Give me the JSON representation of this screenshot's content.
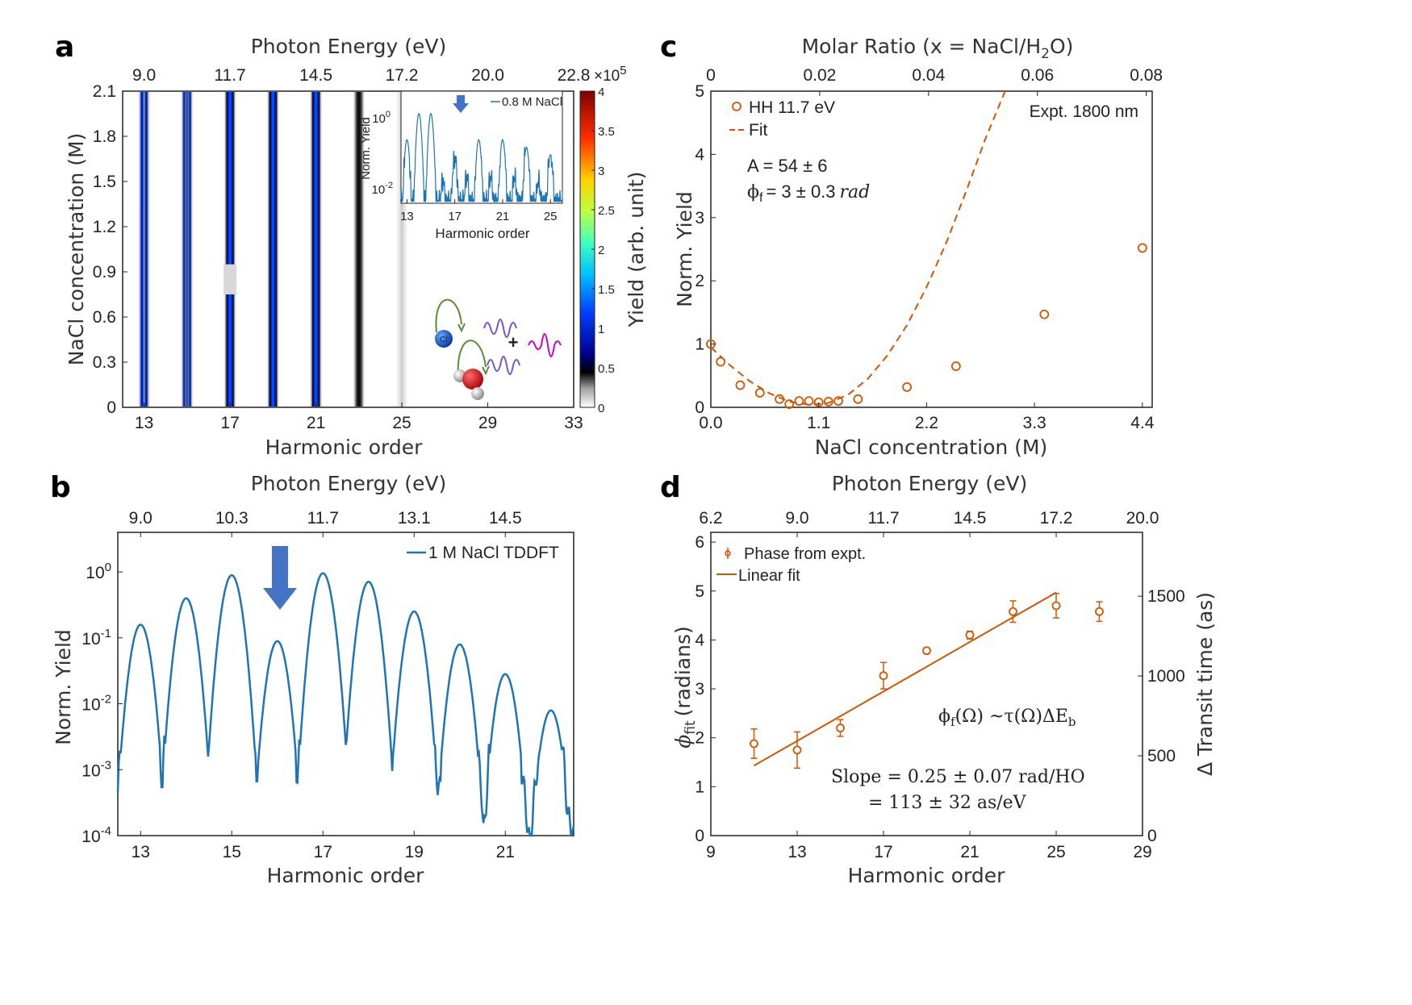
{
  "colors": {
    "orange": "#d45500",
    "blue": "#1f74b4",
    "arrow_blue": "#4472c4",
    "red_text": "#c00000",
    "magenta": "#cc00cc",
    "violet": "#6a5acd"
  },
  "panels": {
    "a": {
      "letter": "a"
    },
    "b": {
      "letter": "b"
    },
    "c": {
      "letter": "c"
    },
    "d": {
      "letter": "d"
    }
  },
  "chart_data": [
    {
      "id": "a",
      "type": "heatmap",
      "top_title": "Photon Energy (eV)",
      "top_ticks": [
        "9.0",
        "11.7",
        "14.5",
        "17.2",
        "20.0",
        "22.8"
      ],
      "top_tick_orders": [
        13,
        17,
        21,
        25,
        29,
        33
      ],
      "xlabel": "Harmonic order",
      "ylabel": "NaCl concentration (M)",
      "xlim": [
        12,
        33
      ],
      "ylim": [
        0,
        2.1
      ],
      "xticks": [
        13,
        17,
        21,
        25,
        29,
        33
      ],
      "yticks": [
        0,
        0.3,
        0.6,
        0.9,
        1.2,
        1.5,
        1.8,
        2.1
      ],
      "ytick_labels": [
        "0",
        "0.3",
        "0.6",
        "0.9",
        "1.2",
        "1.5",
        "1.8",
        "2.1"
      ],
      "harmonic_columns": [
        {
          "order": 13,
          "intensity": 3.0
        },
        {
          "order": 15,
          "intensity": 4.0
        },
        {
          "order": 17,
          "intensity": 1.2
        },
        {
          "order": 19,
          "intensity": 1.3
        },
        {
          "order": 21,
          "intensity": 1.3
        },
        {
          "order": 23,
          "intensity": 0.5
        },
        {
          "order": 25,
          "intensity": 0.05
        }
      ],
      "colorbar": {
        "label": "Yield (arb. unit)",
        "exponent": "×10",
        "exponent_power": "5",
        "ticks": [
          "0",
          "0.5",
          "1",
          "1.5",
          "2",
          "2.5",
          "3",
          "3.5",
          "4"
        ],
        "range": [
          0,
          4
        ]
      },
      "inset": {
        "legend": "0.8 M NaCl",
        "ylabel": "Norm. Yield",
        "xlabel": "Harmonic order",
        "xticks": [
          "13",
          "17",
          "21",
          "25"
        ],
        "ytick_top_base": "10",
        "ytick_top_exp": "0",
        "ytick_bottom_base": "10",
        "ytick_bottom_exp": "-2",
        "peaks": [
          {
            "order": 13,
            "log_yield": -0.7
          },
          {
            "order": 14,
            "log_yield": 0.0
          },
          {
            "order": 15,
            "log_yield": 0.0
          },
          {
            "order": 16,
            "log_yield": -1.8
          },
          {
            "order": 17,
            "log_yield": -1.2
          },
          {
            "order": 18,
            "log_yield": -1.7
          },
          {
            "order": 19,
            "log_yield": -0.7
          },
          {
            "order": 20,
            "log_yield": -1.7
          },
          {
            "order": 21,
            "log_yield": -0.7
          },
          {
            "order": 22,
            "log_yield": -1.7
          },
          {
            "order": 23,
            "log_yield": -0.9
          },
          {
            "order": 24,
            "log_yield": -1.8
          },
          {
            "order": 25,
            "log_yield": -1.1
          }
        ],
        "arrow_at_order": 17
      },
      "schematic": {
        "ion_label": "Cl",
        "ion_charge": "-",
        "plus_symbol": "+"
      }
    },
    {
      "id": "b",
      "type": "line",
      "top_title": "Photon Energy (eV)",
      "top_ticks": [
        "9.0",
        "10.3",
        "11.7",
        "13.1",
        "14.5"
      ],
      "top_tick_orders": [
        13,
        15,
        17,
        19,
        21
      ],
      "xlabel": "Harmonic order",
      "ylabel": "Norm. Yield",
      "legend": "1 M NaCl TDDFT",
      "xlim": [
        12.5,
        22.5
      ],
      "ylim_log10": [
        -4,
        0.6
      ],
      "xticks": [
        13,
        15,
        17,
        19,
        21
      ],
      "ytick_exps": [
        "0",
        "-1",
        "-2",
        "-3",
        "-4"
      ],
      "ytick_base": "10",
      "series": [
        {
          "name": "1 M NaCl TDDFT",
          "peaks": [
            {
              "order": 13,
              "log_yield": -0.8
            },
            {
              "order": 14,
              "log_yield": -0.4
            },
            {
              "order": 15,
              "log_yield": -0.05
            },
            {
              "order": 16,
              "log_yield": -1.05
            },
            {
              "order": 17,
              "log_yield": -0.02
            },
            {
              "order": 18,
              "log_yield": -0.15
            },
            {
              "order": 19,
              "log_yield": -0.6
            },
            {
              "order": 20,
              "log_yield": -1.1
            },
            {
              "order": 21,
              "log_yield": -1.55
            },
            {
              "order": 22,
              "log_yield": -2.1
            }
          ]
        }
      ],
      "arrow_at_order": 16
    },
    {
      "id": "c",
      "type": "scatter",
      "top_title": "Molar Ratio (x = NaCl/H",
      "top_title_sub": "2",
      "top_title_end": "O)",
      "top_ticks": [
        "0",
        "0.02",
        "0.04",
        "0.06",
        "0.08"
      ],
      "top_tick_values": [
        0,
        0.02,
        0.04,
        0.06,
        0.08
      ],
      "xlabel": "NaCl concentration (M)",
      "ylabel": "Norm. Yield",
      "xlim": [
        0,
        4.5
      ],
      "ylim": [
        0,
        5
      ],
      "xticks": [
        0.0,
        1.1,
        2.2,
        3.3,
        4.4
      ],
      "xtick_labels": [
        "0.0",
        "1.1",
        "2.2",
        "3.3",
        "4.4"
      ],
      "yticks": [
        0,
        1,
        2,
        3,
        4,
        5
      ],
      "ytick_labels": [
        "0",
        "1",
        "2",
        "3",
        "4",
        "5"
      ],
      "legend_points": "HH 11.7 eV",
      "legend_fit": "Fit",
      "annotation_topright": "Expt. 1800 nm",
      "annotation_A": "A = 54 ± 6",
      "annotation_phi_sym": "ϕ",
      "annotation_phi_sub": "f",
      "annotation_phi_rest": "= 3 ± 0.3",
      "annotation_phi_unit": "rad",
      "points": [
        {
          "x": 0.0,
          "y": 1.0
        },
        {
          "x": 0.1,
          "y": 0.72
        },
        {
          "x": 0.3,
          "y": 0.35
        },
        {
          "x": 0.5,
          "y": 0.23
        },
        {
          "x": 0.7,
          "y": 0.13
        },
        {
          "x": 0.8,
          "y": 0.05
        },
        {
          "x": 0.9,
          "y": 0.1
        },
        {
          "x": 1.0,
          "y": 0.1
        },
        {
          "x": 1.1,
          "y": 0.08
        },
        {
          "x": 1.2,
          "y": 0.09
        },
        {
          "x": 1.3,
          "y": 0.1
        },
        {
          "x": 1.5,
          "y": 0.13
        },
        {
          "x": 2.0,
          "y": 0.32
        },
        {
          "x": 2.5,
          "y": 0.65
        },
        {
          "x": 3.4,
          "y": 1.47
        },
        {
          "x": 4.4,
          "y": 2.52
        }
      ],
      "fit_curve": [
        {
          "x": 0.0,
          "y": 0.95
        },
        {
          "x": 0.2,
          "y": 0.66
        },
        {
          "x": 0.4,
          "y": 0.41
        },
        {
          "x": 0.6,
          "y": 0.22
        },
        {
          "x": 0.8,
          "y": 0.09
        },
        {
          "x": 1.0,
          "y": 0.04
        },
        {
          "x": 1.2,
          "y": 0.07
        },
        {
          "x": 1.4,
          "y": 0.2
        },
        {
          "x": 1.6,
          "y": 0.45
        },
        {
          "x": 1.8,
          "y": 0.82
        },
        {
          "x": 2.0,
          "y": 1.3
        },
        {
          "x": 2.2,
          "y": 1.9
        },
        {
          "x": 2.4,
          "y": 2.6
        },
        {
          "x": 2.6,
          "y": 3.4
        },
        {
          "x": 2.8,
          "y": 4.25
        },
        {
          "x": 3.0,
          "y": 5.0
        }
      ]
    },
    {
      "id": "d",
      "type": "scatter",
      "top_title": "Photon Energy (eV)",
      "top_ticks": [
        "6.2",
        "9.0",
        "11.7",
        "14.5",
        "17.2",
        "20.0"
      ],
      "top_tick_orders": [
        9,
        13,
        17,
        21,
        25,
        29
      ],
      "xlabel": "Harmonic order",
      "ylabel_sym": "ϕ",
      "ylabel_sub": "fit",
      "ylabel_rest": "(radians)",
      "y2label": "Δ Transit time (as)",
      "xlim": [
        9,
        29
      ],
      "ylim": [
        0,
        6.2
      ],
      "xticks": [
        9,
        13,
        17,
        21,
        25,
        29
      ],
      "yticks": [
        0,
        1,
        2,
        3,
        4,
        5,
        6
      ],
      "y2ticks": [
        0,
        500,
        1000,
        1500
      ],
      "y2lim": [
        0,
        1900
      ],
      "legend_points": "Phase from expt.",
      "legend_fit": "Linear fit",
      "formula_lhs": "ϕ",
      "formula_lhs_sub": "f",
      "formula_mid": "(Ω) ~τ(Ω)ΔE",
      "formula_rhs_sub": "b",
      "slope_line1": "Slope = 0.25 ± 0.07 rad/HO",
      "slope_line2": "= 113 ±  32 as/eV",
      "points": [
        {
          "x": 11,
          "y": 1.88,
          "err": 0.3
        },
        {
          "x": 13,
          "y": 1.75,
          "err": 0.37
        },
        {
          "x": 15,
          "y": 2.2,
          "err": 0.17
        },
        {
          "x": 17,
          "y": 3.27,
          "err": 0.27
        },
        {
          "x": 19,
          "y": 3.78,
          "err": 0.06
        },
        {
          "x": 21,
          "y": 4.1,
          "err": 0.08
        },
        {
          "x": 23,
          "y": 4.58,
          "err": 0.22
        },
        {
          "x": 25,
          "y": 4.7,
          "err": 0.25
        },
        {
          "x": 27,
          "y": 4.58,
          "err": 0.2
        }
      ],
      "fit_line": [
        {
          "x": 11,
          "y": 1.43
        },
        {
          "x": 25,
          "y": 4.97
        }
      ]
    }
  ]
}
